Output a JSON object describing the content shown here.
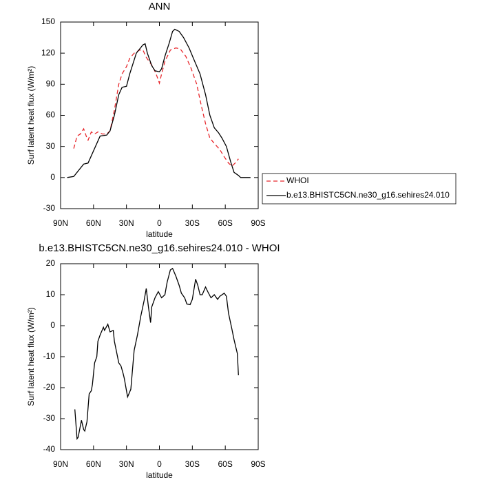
{
  "chart_data": [
    {
      "type": "line",
      "title": "ANN",
      "x_label": "latitude",
      "y_label": "Surf latent heat flux (W/m²)",
      "xlim": [
        90,
        -90
      ],
      "xticks": [
        {
          "value": 90,
          "label": "90N"
        },
        {
          "value": 60,
          "label": "60N"
        },
        {
          "value": 30,
          "label": "30N"
        },
        0,
        {
          "value": -30,
          "label": "30S"
        },
        {
          "value": -60,
          "label": "60S"
        },
        {
          "value": -90,
          "label": "90S"
        }
      ],
      "ylim": [
        -30,
        150
      ],
      "yticks": [
        -30,
        0,
        30,
        60,
        90,
        120,
        150
      ],
      "legend": "right",
      "series": [
        {
          "name": "WHOI",
          "color": "#e8262b",
          "line_style": "dashed",
          "x": [
            78,
            75,
            72,
            69,
            66,
            65,
            62,
            59,
            56,
            52,
            48,
            45,
            41,
            37,
            34,
            30,
            27,
            23,
            18,
            15,
            12,
            8,
            6,
            3,
            0,
            -2,
            -5,
            -10,
            -15,
            -19,
            -24,
            -29,
            -34,
            -38,
            -42,
            -46,
            -50,
            -55,
            -59,
            -63,
            -66,
            -69,
            -72
          ],
          "values": [
            28,
            40,
            42,
            47,
            38,
            36,
            44,
            42,
            44,
            42,
            42,
            45,
            65,
            90,
            100,
            107,
            115,
            120,
            123,
            123,
            116,
            110,
            107,
            100,
            91,
            100,
            112,
            123,
            125,
            124,
            117,
            105,
            90,
            70,
            52,
            38,
            33,
            27,
            20,
            14,
            11,
            14,
            18
          ]
        },
        {
          "name": "b.e13.BHISTC5CN.ne30_g16.sehires24.010",
          "color": "#000000",
          "line_style": "solid",
          "x": [
            84,
            78,
            69,
            65,
            54,
            48,
            45,
            41,
            37,
            34,
            30,
            27,
            21,
            15,
            13,
            11,
            7,
            4,
            0,
            -2,
            -5,
            -9,
            -12,
            -14,
            -18,
            -22,
            -27,
            -31,
            -37,
            -42,
            -46,
            -50,
            -54,
            -57,
            -61,
            -65,
            -68,
            -72,
            -74,
            -83
          ],
          "values": [
            0,
            1,
            13,
            14,
            40,
            41,
            45,
            60,
            80,
            87,
            88,
            100,
            120,
            128,
            129,
            120,
            108,
            103,
            102,
            105,
            117,
            130,
            141,
            143,
            141,
            135,
            125,
            115,
            100,
            80,
            60,
            48,
            43,
            38,
            30,
            15,
            5,
            2,
            0,
            0
          ]
        }
      ]
    },
    {
      "type": "line",
      "title": "b.e13.BHISTC5CN.ne30_g16.sehires24.010 - WHOI",
      "x_label": "latitude",
      "y_label": "Surf latent heat flux (W/m²)",
      "xlim": [
        90,
        -90
      ],
      "xticks": [
        {
          "value": 90,
          "label": "90N"
        },
        {
          "value": 60,
          "label": "60N"
        },
        {
          "value": 30,
          "label": "30N"
        },
        0,
        {
          "value": -30,
          "label": "30S"
        },
        {
          "value": -60,
          "label": "60S"
        },
        {
          "value": -90,
          "label": "90S"
        }
      ],
      "ylim": [
        -40,
        20
      ],
      "yticks": [
        -40,
        -30,
        -20,
        -10,
        0,
        10,
        20
      ],
      "series": [
        {
          "color": "#000000",
          "line_style": "solid",
          "x": [
            77,
            75,
            74,
            71,
            69,
            68,
            66,
            64,
            62,
            61,
            59,
            57,
            56,
            54,
            51,
            50,
            47,
            45,
            42,
            41,
            37,
            35,
            33,
            32,
            30,
            29,
            26,
            23,
            20,
            17,
            14,
            12,
            10,
            8,
            7,
            4,
            1,
            -2,
            -5,
            -7,
            -10,
            -12,
            -15,
            -18,
            -20,
            -23,
            -25,
            -28,
            -30,
            -33,
            -35,
            -37,
            -39,
            -42,
            -44,
            -47,
            -50,
            -53,
            -55,
            -59,
            -61,
            -63,
            -66,
            -68,
            -71,
            -72
          ],
          "values": [
            -27,
            -36.5,
            -36,
            -30.5,
            -33.5,
            -34,
            -31,
            -22,
            -21,
            -19,
            -12,
            -10,
            -5,
            -3,
            -0.5,
            -1.5,
            0.5,
            -2,
            -1.5,
            -5,
            -12,
            -13,
            -15.5,
            -17,
            -21,
            -23,
            -20.5,
            -8,
            -3,
            3,
            8,
            12,
            6,
            1,
            6,
            9,
            11,
            9,
            10,
            14,
            18,
            18.5,
            16,
            13,
            10.5,
            9,
            7,
            6.8,
            8.5,
            15,
            13,
            10,
            10,
            12.5,
            11,
            9,
            10,
            8.5,
            9.5,
            10.5,
            9.5,
            4,
            -1,
            -4.5,
            -9,
            -16
          ]
        }
      ]
    }
  ]
}
